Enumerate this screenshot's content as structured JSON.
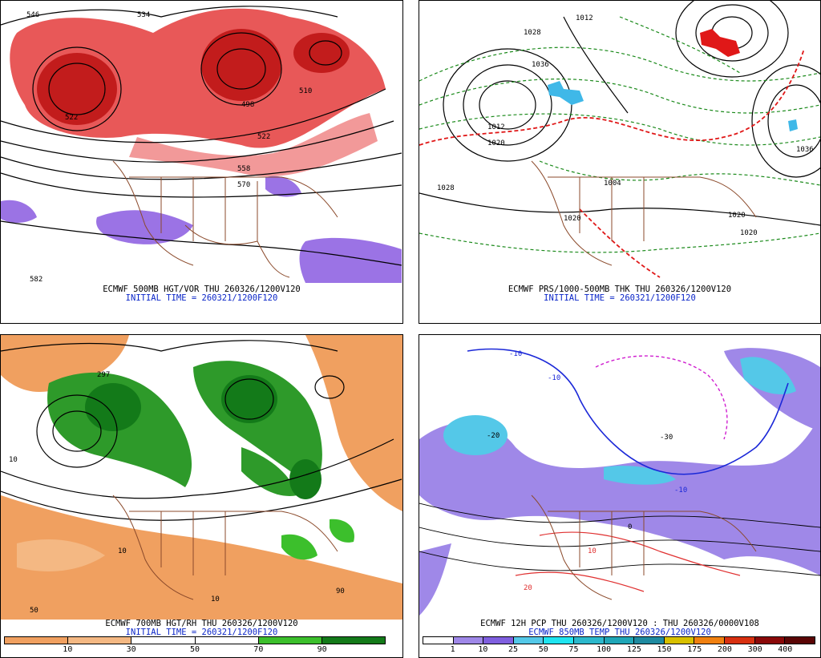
{
  "panels": [
    {
      "id": "p1",
      "line1": "ECMWF 500MB HGT/VOR THU 260326/1200V120",
      "line2": "INITIAL TIME = 260321/1200F120",
      "contour_labels": [
        "546",
        "534",
        "522",
        "498",
        "510",
        "522",
        "558",
        "570",
        "582"
      ]
    },
    {
      "id": "p2",
      "line1": "ECMWF PRS/1000-500MB THK THU 260326/1200V120",
      "line2": "INITIAL TIME = 260321/1200F120",
      "contour_labels": [
        "1012",
        "1028",
        "1036",
        "1012",
        "1020",
        "1028",
        "1004",
        "1020",
        "1020",
        "1036",
        "1020"
      ]
    },
    {
      "id": "p3",
      "line1": "ECMWF 700MB HGT/RH THU 260326/1200V120",
      "line2": "INITIAL TIME = 260321/1200F120",
      "contour_labels": [
        "297",
        "10",
        "10",
        "10",
        "50",
        "90"
      ]
    },
    {
      "id": "p4",
      "line1": "ECMWF 12H PCP THU 260326/1200V120 : THU 260326/0000V108",
      "line2": "ECMWF 850MB TEMP THU 260326/1200V120",
      "contour_labels": [
        "-10",
        "-10",
        "-20",
        "-30",
        "-10",
        "0",
        "10",
        "20"
      ]
    }
  ],
  "colorbars": {
    "rh": {
      "labels": [
        "10",
        "30",
        "50",
        "70",
        "90"
      ],
      "colors": [
        "#f0a060",
        "#f4b883",
        "#ffffff",
        "#ffffff",
        "#3cbf2c",
        "#137a19"
      ]
    },
    "pcp": {
      "labels": [
        "1",
        "10",
        "25",
        "50",
        "75",
        "100",
        "125",
        "150",
        "175",
        "200",
        "300",
        "400"
      ],
      "colors": [
        "#ffffff",
        "#9f88e8",
        "#7f5fdf",
        "#54c8e8",
        "#1fe4f0",
        "#2cb8cc",
        "#1fa6b7",
        "#1e8aa0",
        "#d8c000",
        "#f08010",
        "#d83010",
        "#8a0808",
        "#5a0505"
      ]
    }
  }
}
